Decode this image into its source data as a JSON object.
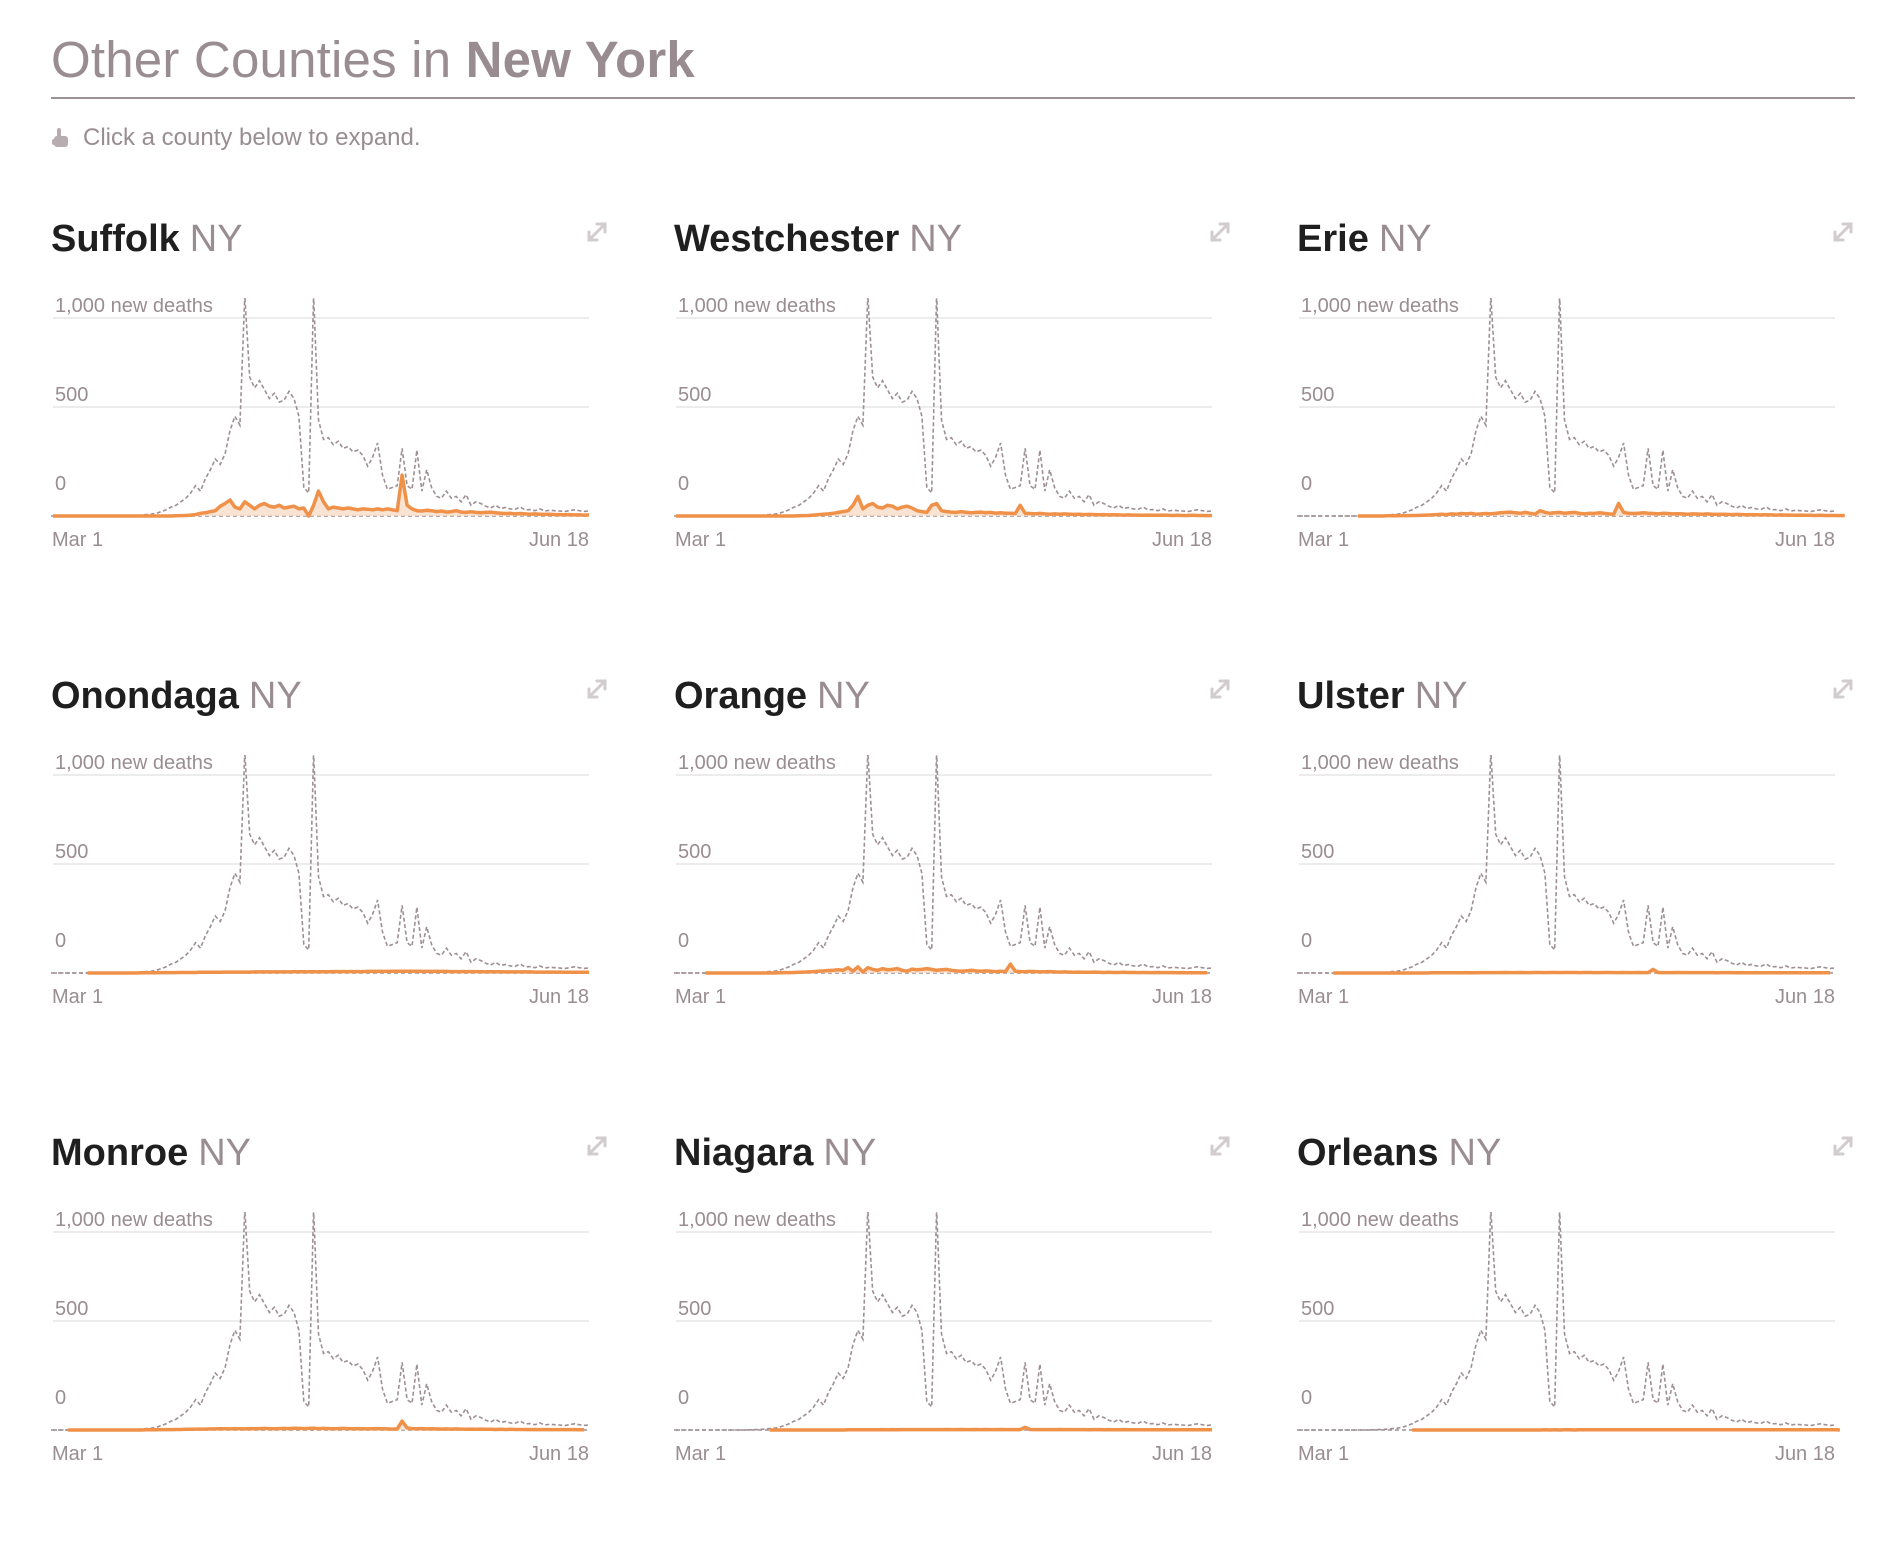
{
  "header": {
    "title_prefix": "Other Counties in",
    "title_state": "New York",
    "hint": "Click a county below to expand."
  },
  "colors": {
    "accent": "#f0914a",
    "accent_fill": "#f7dcc8",
    "reference_line": "#9d8f93",
    "muted_text": "#9a8d91",
    "gridline": "#e5e5e5"
  },
  "icons": {
    "hint": "pointing-hand-icon",
    "expand": "expand-arrows-icon"
  },
  "counties": [
    {
      "name": "Suffolk",
      "state": "NY"
    },
    {
      "name": "Westchester",
      "state": "NY"
    },
    {
      "name": "Erie",
      "state": "NY"
    },
    {
      "name": "Onondaga",
      "state": "NY"
    },
    {
      "name": "Orange",
      "state": "NY"
    },
    {
      "name": "Ulster",
      "state": "NY"
    },
    {
      "name": "Monroe",
      "state": "NY"
    },
    {
      "name": "Niagara",
      "state": "NY"
    },
    {
      "name": "Orleans",
      "state": "NY"
    }
  ],
  "chart_data": {
    "type": "line",
    "ylabel": "1,000 new deaths",
    "y_ticks": [
      {
        "value": 0,
        "label": "0"
      },
      {
        "value": 500,
        "label": "500"
      },
      {
        "value": 1000,
        "label": "1,000 new deaths"
      }
    ],
    "x_ticks": [
      {
        "value": 0,
        "label": "Mar 1"
      },
      {
        "value": 109,
        "label": "Jun 18"
      }
    ],
    "ylim": [
      0,
      1000
    ],
    "grid": true,
    "reference_series_name": "",
    "state_reference_values": [
      0,
      0,
      0,
      0,
      0,
      0,
      0,
      0,
      0,
      0,
      0,
      0,
      0,
      0,
      0,
      1,
      2,
      3,
      5,
      8,
      10,
      15,
      25,
      35,
      50,
      60,
      80,
      100,
      130,
      170,
      140,
      210,
      260,
      320,
      290,
      350,
      480,
      560,
      510,
      1250,
      780,
      720,
      760,
      710,
      660,
      690,
      640,
      650,
      700,
      660,
      560,
      160,
      130,
      1250,
      540,
      430,
      440,
      400,
      420,
      380,
      390,
      360,
      370,
      340,
      280,
      330,
      410,
      230,
      150,
      160,
      170,
      380,
      170,
      150,
      370,
      140,
      260,
      160,
      110,
      100,
      140,
      100,
      110,
      80,
      120,
      60,
      80,
      70,
      55,
      45,
      60,
      42,
      48,
      40,
      38,
      50,
      34,
      36,
      30,
      40,
      28,
      32,
      30,
      28,
      25,
      30,
      35,
      30,
      26,
      28
    ],
    "series": [
      {
        "county": "Suffolk",
        "start": 0,
        "values": [
          0,
          0,
          0,
          0,
          0,
          0,
          0,
          0,
          0,
          0,
          0,
          0,
          0,
          0,
          0,
          0,
          0,
          0,
          0,
          0,
          0,
          0,
          0,
          0,
          0,
          1,
          2,
          3,
          5,
          8,
          15,
          18,
          25,
          30,
          55,
          70,
          90,
          50,
          40,
          80,
          60,
          40,
          60,
          70,
          55,
          50,
          60,
          45,
          50,
          55,
          40,
          45,
          0,
          60,
          140,
          80,
          40,
          50,
          45,
          40,
          45,
          40,
          35,
          40,
          38,
          35,
          40,
          35,
          40,
          35,
          30,
          230,
          60,
          40,
          30,
          28,
          32,
          30,
          25,
          28,
          22,
          25,
          30,
          22,
          20,
          24,
          20,
          18,
          20,
          22,
          18,
          16,
          14,
          15,
          12,
          14,
          12,
          10,
          12,
          10,
          9,
          10,
          8,
          8,
          7,
          8,
          6,
          6,
          5,
          6
        ]
      },
      {
        "county": "Westchester",
        "start": 0,
        "values": [
          0,
          0,
          0,
          0,
          0,
          0,
          0,
          0,
          0,
          0,
          0,
          0,
          0,
          0,
          0,
          0,
          0,
          0,
          0,
          0,
          0,
          0,
          0,
          0,
          0,
          1,
          2,
          3,
          5,
          8,
          10,
          12,
          15,
          20,
          25,
          30,
          60,
          110,
          40,
          60,
          70,
          50,
          45,
          60,
          55,
          40,
          50,
          55,
          45,
          30,
          25,
          20,
          60,
          70,
          30,
          25,
          22,
          20,
          25,
          20,
          18,
          20,
          22,
          18,
          20,
          16,
          18,
          15,
          16,
          14,
          60,
          15,
          14,
          12,
          15,
          12,
          10,
          12,
          10,
          12,
          10,
          9,
          10,
          8,
          9,
          8,
          7,
          8,
          6,
          7,
          6,
          5,
          6,
          5,
          5,
          4,
          5,
          4,
          4,
          5,
          4,
          3,
          4,
          3,
          3,
          4,
          3,
          3,
          2,
          3
        ]
      },
      {
        "county": "Erie",
        "start": 12,
        "values": [
          0,
          0,
          0,
          0,
          0,
          0,
          1,
          1,
          1,
          2,
          2,
          3,
          3,
          4,
          5,
          6,
          8,
          10,
          8,
          12,
          10,
          14,
          12,
          15,
          10,
          12,
          14,
          12,
          15,
          18,
          20,
          22,
          18,
          15,
          20,
          15,
          10,
          30,
          20,
          15,
          18,
          20,
          15,
          18,
          20,
          15,
          12,
          15,
          14,
          18,
          15,
          12,
          10,
          70,
          20,
          15,
          14,
          16,
          18,
          15,
          14,
          12,
          15,
          14,
          12,
          13,
          12,
          10,
          12,
          11,
          10,
          12,
          10,
          9,
          10,
          9,
          8,
          9,
          8,
          7,
          8,
          7,
          6,
          7,
          6,
          5,
          6,
          5,
          5,
          4,
          5,
          4,
          4,
          3,
          4,
          3,
          3,
          3,
          2,
          3
        ]
      },
      {
        "county": "Onondaga",
        "start": 7,
        "values": [
          0,
          0,
          0,
          0,
          0,
          0,
          0,
          0,
          0,
          0,
          0,
          1,
          1,
          1,
          1,
          2,
          2,
          2,
          2,
          3,
          3,
          3,
          3,
          4,
          4,
          4,
          4,
          4,
          5,
          5,
          5,
          5,
          5,
          5,
          6,
          6,
          6,
          6,
          6,
          6,
          6,
          6,
          7,
          7,
          7,
          7,
          7,
          7,
          7,
          7,
          8,
          8,
          8,
          8,
          8,
          8,
          8,
          9,
          9,
          9,
          9,
          9,
          10,
          10,
          10,
          10,
          10,
          10,
          9,
          9,
          9,
          9,
          9,
          9,
          8,
          8,
          8,
          8,
          8,
          8,
          7,
          7,
          7,
          7,
          7,
          6,
          6,
          6,
          6,
          6,
          6,
          5,
          5,
          5,
          5,
          5,
          5,
          4,
          4,
          4,
          4,
          4,
          4
        ]
      },
      {
        "county": "Orange",
        "start": 6,
        "values": [
          0,
          0,
          0,
          0,
          0,
          0,
          0,
          0,
          0,
          0,
          0,
          0,
          0,
          0,
          0,
          1,
          2,
          2,
          3,
          4,
          5,
          6,
          8,
          10,
          12,
          14,
          15,
          18,
          16,
          30,
          10,
          35,
          5,
          30,
          20,
          15,
          25,
          18,
          20,
          25,
          15,
          10,
          22,
          18,
          20,
          25,
          20,
          15,
          18,
          20,
          15,
          12,
          10,
          12,
          15,
          12,
          10,
          12,
          10,
          8,
          10,
          8,
          50,
          10,
          8,
          7,
          9,
          8,
          6,
          7,
          8,
          6,
          5,
          6,
          5,
          4,
          5,
          4,
          4,
          5,
          4,
          3,
          4,
          3,
          3,
          4,
          3,
          3,
          2,
          3,
          2,
          2,
          3,
          2,
          2,
          2,
          1,
          2,
          1,
          1,
          1,
          1,
          1
        ]
      },
      {
        "county": "Ulster",
        "start": 7,
        "values": [
          0,
          0,
          0,
          0,
          0,
          0,
          0,
          0,
          0,
          0,
          0,
          0,
          0,
          0,
          0,
          0,
          0,
          0,
          0,
          0,
          1,
          1,
          1,
          1,
          1,
          1,
          1,
          2,
          1,
          1,
          2,
          2,
          2,
          2,
          2,
          3,
          2,
          2,
          3,
          2,
          2,
          3,
          3,
          2,
          3,
          3,
          2,
          3,
          3,
          3,
          2,
          3,
          3,
          2,
          2,
          3,
          3,
          2,
          2,
          3,
          2,
          2,
          3,
          2,
          2,
          20,
          3,
          2,
          2,
          2,
          3,
          2,
          2,
          2,
          2,
          2,
          2,
          2,
          1,
          2,
          2,
          2,
          1,
          2,
          1,
          1,
          2,
          1,
          1,
          1,
          1,
          1,
          1,
          1,
          1,
          1,
          1,
          1,
          1,
          1,
          1,
          1
        ]
      },
      {
        "county": "Monroe",
        "start": 3,
        "values": [
          0,
          0,
          0,
          0,
          0,
          0,
          0,
          0,
          0,
          0,
          0,
          0,
          0,
          0,
          0,
          0,
          1,
          1,
          1,
          2,
          2,
          2,
          3,
          3,
          4,
          4,
          5,
          5,
          5,
          6,
          6,
          7,
          7,
          6,
          8,
          7,
          6,
          8,
          7,
          8,
          9,
          8,
          7,
          8,
          9,
          8,
          10,
          9,
          8,
          9,
          10,
          8,
          9,
          8,
          7,
          8,
          9,
          8,
          7,
          8,
          7,
          6,
          7,
          8,
          7,
          6,
          5,
          6,
          50,
          12,
          8,
          7,
          8,
          6,
          7,
          6,
          5,
          6,
          5,
          6,
          5,
          4,
          5,
          4,
          5,
          4,
          4,
          3,
          4,
          3,
          4,
          3,
          3,
          3,
          2,
          3,
          2,
          3,
          2,
          2,
          2,
          2,
          2,
          2,
          1,
          1
        ]
      },
      {
        "county": "Niagara",
        "start": 19,
        "values": [
          0,
          0,
          0,
          0,
          0,
          0,
          0,
          0,
          0,
          0,
          0,
          0,
          0,
          0,
          0,
          0,
          1,
          1,
          1,
          1,
          1,
          1,
          1,
          2,
          1,
          2,
          1,
          2,
          2,
          2,
          2,
          2,
          2,
          2,
          2,
          2,
          3,
          2,
          2,
          3,
          2,
          2,
          3,
          2,
          3,
          2,
          2,
          3,
          2,
          2,
          2,
          2,
          15,
          3,
          2,
          2,
          2,
          2,
          2,
          3,
          2,
          2,
          2,
          2,
          2,
          1,
          2,
          2,
          1,
          2,
          1,
          1,
          2,
          1,
          1,
          1,
          1,
          1,
          1,
          1,
          1,
          1,
          1,
          1,
          1,
          1,
          1,
          1,
          1,
          1,
          1
        ]
      },
      {
        "county": "Orleans",
        "start": 23,
        "values": [
          0,
          0,
          0,
          0,
          0,
          0,
          0,
          0,
          0,
          0,
          0,
          0,
          0,
          0,
          0,
          0,
          0,
          0,
          0,
          0,
          0,
          0,
          0,
          0,
          0,
          0,
          0,
          1,
          0,
          1,
          0,
          1,
          1,
          0,
          1,
          1,
          1,
          1,
          1,
          1,
          1,
          1,
          1,
          1,
          1,
          1,
          1,
          1,
          1,
          1,
          1,
          1,
          1,
          1,
          1,
          1,
          1,
          1,
          1,
          1,
          1,
          1,
          1,
          1,
          1,
          1,
          1,
          1,
          1,
          1,
          1,
          1,
          1,
          1,
          1,
          1,
          1,
          1,
          1,
          1,
          1,
          1,
          1,
          1,
          1,
          1,
          1,
          0
        ]
      }
    ]
  }
}
